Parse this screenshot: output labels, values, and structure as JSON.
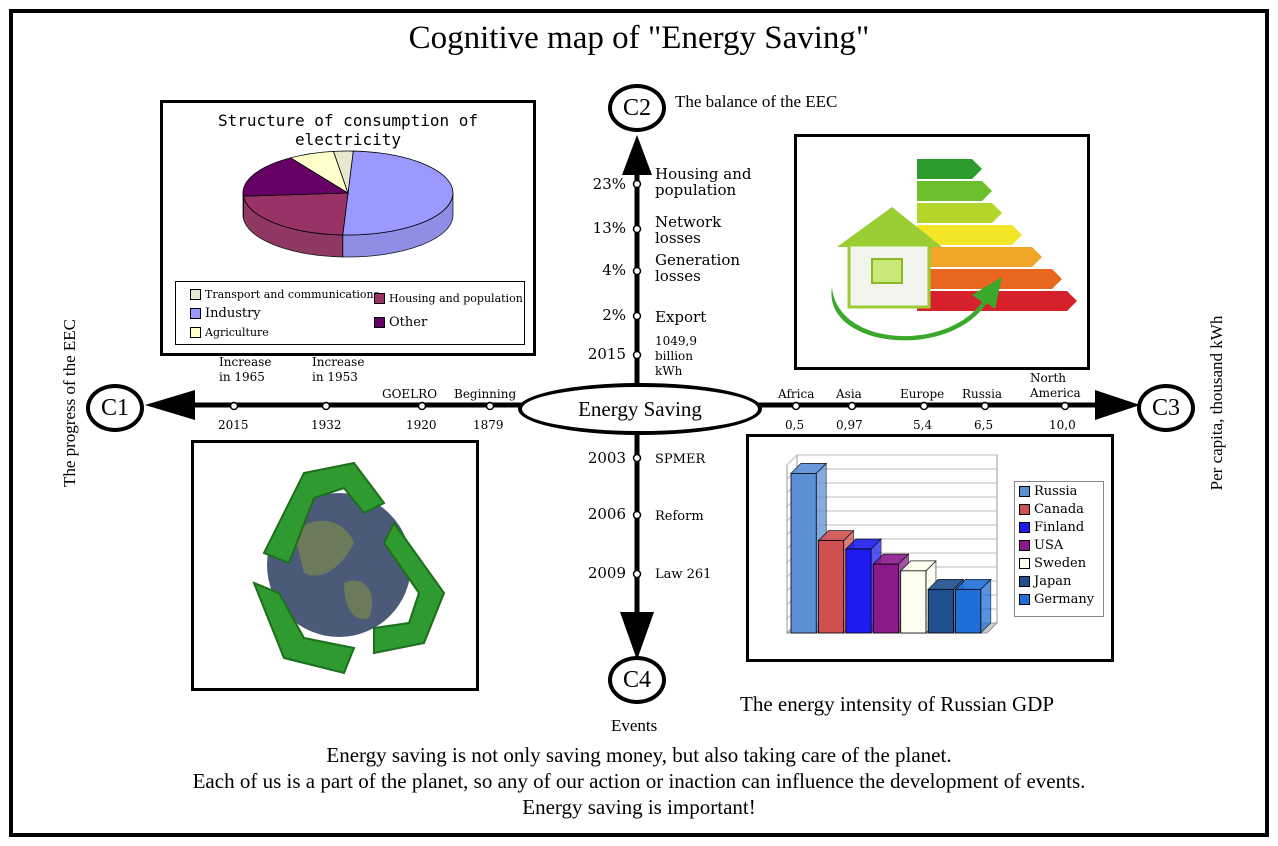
{
  "title": "Cognitive map of \"Energy Saving\"",
  "center": "Energy Saving",
  "nodes": {
    "c1": "C1",
    "c2": "C2",
    "c3": "C3",
    "c4": "C4"
  },
  "node_labels": {
    "c2": "The balance of the EEC",
    "c4": "Events",
    "c1_side": "The progress of the EEC",
    "c3_side": "Per capita, thousand kWh"
  },
  "balance_axis": [
    {
      "value": "23%",
      "label": "Housing and population"
    },
    {
      "value": "13%",
      "label": "Network losses"
    },
    {
      "value": "4%",
      "label": "Generation losses"
    },
    {
      "value": "2%",
      "label": "Export"
    },
    {
      "value": "2015",
      "label": "1049,9 billion kWh"
    }
  ],
  "events_axis": [
    {
      "year": "2003",
      "label": "SPMER"
    },
    {
      "year": "2006",
      "label": "Reform"
    },
    {
      "year": "2009",
      "label": "Law 261"
    }
  ],
  "progress_axis": [
    {
      "top": "Increase in 1965",
      "bottom": "2015"
    },
    {
      "top": "Increase in 1953",
      "bottom": "1932"
    },
    {
      "top": "GOELRO",
      "bottom": "1920"
    },
    {
      "top": "Beginning",
      "bottom": "1879"
    }
  ],
  "per_capita_axis": [
    {
      "region": "Africa",
      "value": "0,5"
    },
    {
      "region": "Asia",
      "value": "0,97"
    },
    {
      "region": "Europe",
      "value": "5,4"
    },
    {
      "region": "Russia",
      "value": "6,5"
    },
    {
      "region": "North America",
      "value": "10,0"
    }
  ],
  "pie_chart": {
    "title": "Structure of consumption of electricity",
    "legend": [
      "Transport and communications",
      "Housing and population",
      "Industry",
      "Other",
      "Agriculture"
    ]
  },
  "bar_chart": {
    "caption": "The energy intensity of Russian GDP"
  },
  "chart_data": [
    {
      "type": "pie",
      "title": "Structure of consumption of electricity",
      "labels": [
        "Industry",
        "Housing and population",
        "Other",
        "Agriculture",
        "Transport and communications"
      ],
      "values": [
        50,
        23,
        17,
        7,
        3
      ],
      "colors": [
        "#9999ff",
        "#993366",
        "#660066",
        "#ffffcc",
        "#e8e8d0"
      ]
    },
    {
      "type": "bar",
      "title": "",
      "categories": [
        "Russia",
        "Canada",
        "Finland",
        "USA",
        "Sweden",
        "Japan",
        "Germany"
      ],
      "values": [
        0.95,
        0.55,
        0.5,
        0.41,
        0.37,
        0.26,
        0.26
      ],
      "colors": [
        "#5b8fd6",
        "#d05050",
        "#1c1cf0",
        "#8a1a8a",
        "#fffff0",
        "#1f4f8f",
        "#1f6fd6"
      ],
      "ylim": [
        0,
        1
      ],
      "grid": true,
      "legend": "right"
    }
  ],
  "footer": {
    "line1": "Energy saving is not only saving money, but also taking care of the planet.",
    "line2": "Each of us is a part of the planet, so any of our action or inaction can influence the development of events.",
    "line3": "Energy saving is important!"
  }
}
